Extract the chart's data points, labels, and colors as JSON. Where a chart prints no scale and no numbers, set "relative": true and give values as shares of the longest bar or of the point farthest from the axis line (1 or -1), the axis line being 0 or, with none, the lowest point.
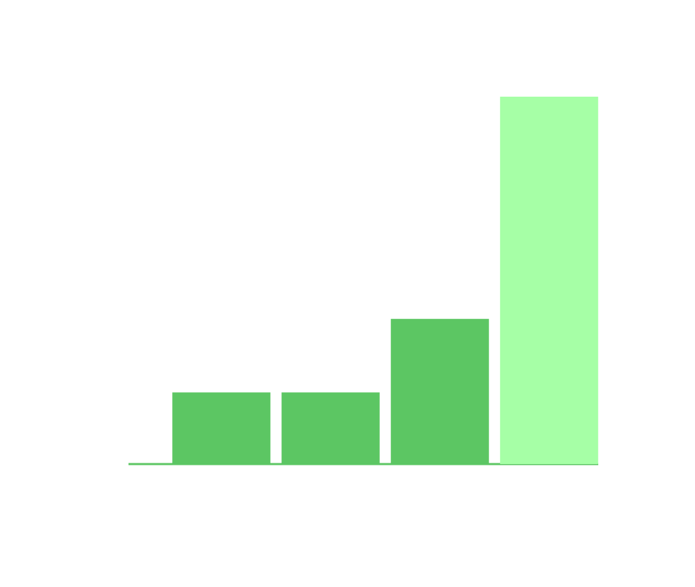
{
  "chart_data": {
    "type": "bar",
    "relative": true,
    "categories": [
      null,
      null,
      null,
      null
    ],
    "values": [
      0.195,
      0.195,
      0.395,
      1
    ],
    "colors": [
      "#5cc663",
      "#5cc663",
      "#5cc663",
      "#a6ffa6"
    ]
  }
}
